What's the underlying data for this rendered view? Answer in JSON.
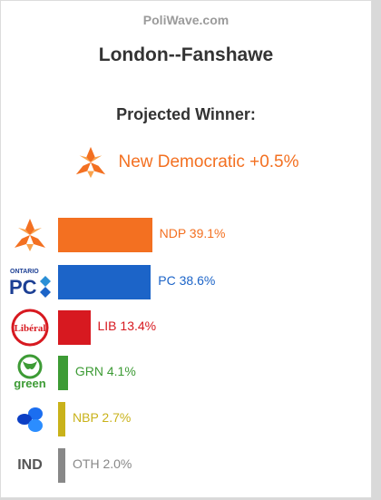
{
  "site": "PoliWave.com",
  "riding": "London--Fanshawe",
  "projected_label": "Projected Winner:",
  "winner": {
    "text": "New Democratic +0.5%",
    "icon": "ndp-logo-icon",
    "color": "#f37021"
  },
  "parties": [
    {
      "key": "ndp",
      "label": "NDP 39.1%",
      "value": 39.1,
      "color": "#f37021",
      "icon": "ndp-logo-icon"
    },
    {
      "key": "pc",
      "label": "PC 38.6%",
      "value": 38.6,
      "color": "#1c64c8",
      "icon": "pc-logo-icon"
    },
    {
      "key": "lib",
      "label": "LIB 13.4%",
      "value": 13.4,
      "color": "#d71920",
      "icon": "liberal-logo-icon",
      "logo_text": "Libéral"
    },
    {
      "key": "grn",
      "label": "GRN 4.1%",
      "value": 4.1,
      "color": "#3d9b35",
      "icon": "green-logo-icon",
      "logo_text": "green"
    },
    {
      "key": "nbp",
      "label": "NBP 2.7%",
      "value": 2.7,
      "color": "#c9b21a",
      "icon": "nbp-logo-icon"
    },
    {
      "key": "oth",
      "label": "OTH 2.0%",
      "value": 2.0,
      "color": "#888888",
      "icon": "ind-text-icon",
      "logo_text": "IND"
    }
  ]
}
